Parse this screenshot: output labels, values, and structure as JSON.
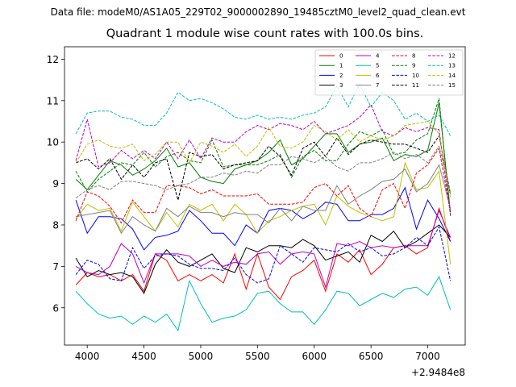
{
  "suptitle": "Data file: modeM0/AS1A05_229T02_9000002890_19485cztM0_level2_quad_clean.evt",
  "chart_data": {
    "type": "line",
    "title": "Quadrant 1 module wise count rates with 100.0s bins.",
    "xlabel": "",
    "ylabel": "",
    "x_offset_label": "+2.9484e8",
    "xlim": [
      3800,
      7330
    ],
    "ylim": [
      5.1,
      12.3
    ],
    "xticks": [
      4000,
      4500,
      5000,
      5500,
      6000,
      6500,
      7000
    ],
    "xtick_labels": [
      "4000",
      "4500",
      "5000",
      "5500",
      "6000",
      "6500",
      "7000"
    ],
    "yticks": [
      6,
      7,
      8,
      9,
      10,
      11,
      12
    ],
    "ytick_labels": [
      "6",
      "7",
      "8",
      "9",
      "10",
      "11",
      "12"
    ],
    "grid": false,
    "legend_position": "top-right",
    "x": [
      3900,
      4000,
      4100,
      4200,
      4300,
      4400,
      4500,
      4600,
      4700,
      4800,
      4900,
      5000,
      5100,
      5200,
      5300,
      5400,
      5500,
      5600,
      5700,
      5800,
      5900,
      6000,
      6100,
      6200,
      6300,
      6400,
      6500,
      6600,
      6700,
      6800,
      6900,
      7000,
      7100,
      7200
    ],
    "series": [
      {
        "name": "0",
        "color": "#ff0000",
        "dash": "solid",
        "values": [
          6.55,
          6.85,
          6.75,
          6.8,
          6.65,
          6.8,
          6.4,
          7.3,
          7.15,
          6.65,
          6.8,
          6.65,
          6.8,
          6.6,
          7.3,
          6.45,
          7.3,
          6.5,
          6.2,
          6.75,
          6.9,
          7.15,
          6.4,
          7.3,
          7.1,
          7.4,
          6.8,
          7.05,
          7.45,
          7.5,
          7.3,
          7.45,
          8.4,
          7.6
        ]
      },
      {
        "name": "1",
        "color": "#008000",
        "dash": "solid",
        "values": [
          9.1,
          8.85,
          9.2,
          9.55,
          9.45,
          9.2,
          9.35,
          9.55,
          9.85,
          9.4,
          9.5,
          9.15,
          9.05,
          9.0,
          9.35,
          9.45,
          9.55,
          9.75,
          10.05,
          9.45,
          9.6,
          9.9,
          10.2,
          10.2,
          9.75,
          9.95,
          10.0,
          10.1,
          9.55,
          9.7,
          9.65,
          9.8,
          10.95,
          8.3
        ]
      },
      {
        "name": "2",
        "color": "#0000ff",
        "dash": "solid",
        "values": [
          8.6,
          7.8,
          8.2,
          8.2,
          8.15,
          7.9,
          7.4,
          7.7,
          7.75,
          7.85,
          8.35,
          8.1,
          7.8,
          7.8,
          7.5,
          8.0,
          7.8,
          8.35,
          8.4,
          8.35,
          8.15,
          8.3,
          8.55,
          8.5,
          8.1,
          8.1,
          8.25,
          8.25,
          8.4,
          8.9,
          7.9,
          8.6,
          8.15,
          7.6
        ]
      },
      {
        "name": "3",
        "color": "#000000",
        "dash": "solid",
        "values": [
          7.2,
          6.75,
          6.9,
          6.8,
          6.85,
          6.75,
          6.35,
          7.05,
          7.4,
          7.1,
          7.0,
          7.15,
          7.3,
          6.95,
          6.85,
          7.45,
          7.35,
          7.5,
          7.5,
          7.45,
          7.65,
          7.5,
          7.15,
          7.25,
          7.35,
          7.1,
          7.75,
          7.6,
          7.85,
          7.45,
          7.6,
          7.8,
          8.0,
          7.7
        ]
      },
      {
        "name": "4",
        "color": "#bf00bf",
        "dash": "solid",
        "values": [
          7.0,
          6.85,
          6.8,
          7.0,
          7.55,
          7.3,
          6.6,
          7.3,
          7.3,
          7.3,
          7.25,
          7.0,
          7.15,
          7.0,
          7.1,
          7.05,
          7.3,
          7.35,
          7.05,
          7.3,
          7.35,
          7.3,
          6.5,
          7.55,
          7.5,
          7.6,
          7.45,
          7.5,
          7.45,
          7.5,
          7.5,
          7.5,
          8.35,
          7.7
        ]
      },
      {
        "name": "5",
        "color": "#00bfbf",
        "dash": "solid",
        "values": [
          6.4,
          6.1,
          5.85,
          5.75,
          5.8,
          5.6,
          5.8,
          5.65,
          5.85,
          5.45,
          6.65,
          6.1,
          5.65,
          5.75,
          5.8,
          5.95,
          6.35,
          6.4,
          6.1,
          5.9,
          5.9,
          5.6,
          5.95,
          6.4,
          6.35,
          6.05,
          6.2,
          6.35,
          6.25,
          6.45,
          6.5,
          6.3,
          6.75,
          5.95
        ]
      },
      {
        "name": "6",
        "color": "#bfbf00",
        "dash": "solid",
        "values": [
          8.15,
          8.5,
          8.35,
          8.4,
          7.85,
          8.55,
          8.2,
          7.85,
          8.3,
          7.95,
          8.5,
          8.35,
          8.5,
          8.1,
          8.5,
          8.25,
          7.8,
          8.1,
          8.2,
          8.35,
          8.45,
          8.5,
          8.0,
          8.7,
          8.45,
          8.3,
          8.2,
          8.1,
          8.2,
          9.5,
          8.85,
          8.9,
          9.3,
          7.05
        ]
      },
      {
        "name": "7",
        "color": "#808080",
        "dash": "solid",
        "values": [
          8.2,
          8.25,
          8.3,
          8.35,
          7.8,
          8.2,
          8.0,
          7.85,
          8.4,
          8.2,
          8.45,
          8.3,
          8.3,
          8.2,
          8.3,
          8.25,
          8.25,
          8.05,
          8.4,
          8.1,
          8.45,
          8.35,
          8.35,
          8.95,
          8.5,
          8.7,
          8.85,
          9.05,
          9.1,
          9.35,
          8.8,
          9.0,
          9.45,
          8.4
        ]
      },
      {
        "name": "8",
        "color": "#ff0000",
        "dash": "dashed",
        "values": [
          8.1,
          8.8,
          8.7,
          8.45,
          8.05,
          8.6,
          8.3,
          8.3,
          8.95,
          8.95,
          8.9,
          8.75,
          8.85,
          8.7,
          8.7,
          8.7,
          8.75,
          8.5,
          8.5,
          8.5,
          8.55,
          8.9,
          9.0,
          8.7,
          8.95,
          8.4,
          8.2,
          8.85,
          9.0,
          8.4,
          9.25,
          9.45,
          9.85,
          8.3
        ]
      },
      {
        "name": "9",
        "color": "#008000",
        "dash": "dashed",
        "values": [
          9.3,
          8.8,
          9.1,
          9.3,
          9.5,
          9.45,
          9.75,
          9.4,
          9.65,
          9.75,
          9.55,
          9.5,
          10.05,
          9.4,
          9.45,
          9.45,
          9.45,
          9.55,
          9.7,
          9.15,
          9.65,
          9.8,
          9.55,
          9.55,
          9.95,
          10.25,
          10.15,
          10.3,
          9.7,
          9.75,
          10.05,
          10.2,
          11.05,
          8.2
        ]
      },
      {
        "name": "10",
        "color": "#0000ff",
        "dash": "dashed",
        "values": [
          6.8,
          7.15,
          7.05,
          6.7,
          6.65,
          7.45,
          6.95,
          7.25,
          7.3,
          7.25,
          7.05,
          6.95,
          6.95,
          6.9,
          7.2,
          6.8,
          6.6,
          6.7,
          7.5,
          7.3,
          7.1,
          7.45,
          7.4,
          7.35,
          7.55,
          7.35,
          7.45,
          7.25,
          7.3,
          7.45,
          7.7,
          7.5,
          7.95,
          6.65
        ]
      },
      {
        "name": "11",
        "color": "#000000",
        "dash": "dashed",
        "values": [
          9.5,
          9.6,
          9.35,
          9.6,
          9.1,
          9.45,
          9.15,
          9.5,
          9.6,
          8.6,
          9.75,
          9.65,
          9.7,
          9.35,
          9.45,
          9.5,
          9.55,
          9.9,
          9.65,
          9.2,
          9.85,
          10.0,
          9.65,
          10.1,
          9.7,
          9.95,
          10.05,
          10.0,
          9.95,
          9.95,
          9.85,
          9.75,
          10.15,
          8.75
        ]
      },
      {
        "name": "12",
        "color": "#bf00bf",
        "dash": "dashed",
        "values": [
          9.55,
          10.55,
          9.4,
          9.5,
          9.8,
          9.6,
          9.8,
          9.6,
          10.0,
          9.6,
          10.05,
          9.6,
          10.1,
          10.0,
          10.0,
          10.25,
          10.4,
          10.3,
          10.45,
          10.4,
          10.3,
          10.5,
          10.2,
          10.3,
          10.4,
          10.6,
          10.9,
          10.25,
          10.15,
          10.35,
          10.25,
          10.35,
          10.3,
          8.25
        ]
      },
      {
        "name": "13",
        "color": "#00bfbf",
        "dash": "dashed",
        "values": [
          10.2,
          10.7,
          10.75,
          10.75,
          10.6,
          10.55,
          10.4,
          10.4,
          10.7,
          11.2,
          11.0,
          11.05,
          10.95,
          10.8,
          10.6,
          10.55,
          10.65,
          10.55,
          10.6,
          10.55,
          10.65,
          10.7,
          10.85,
          11.35,
          10.85,
          11.4,
          10.85,
          11.2,
          11.0,
          10.55,
          10.7,
          10.5,
          10.65,
          10.15
        ]
      },
      {
        "name": "14",
        "color": "#bfbf00",
        "dash": "dashed",
        "values": [
          9.5,
          9.95,
          10.05,
          9.9,
          9.85,
          9.95,
          9.55,
          9.7,
          10.0,
          10.0,
          9.5,
          10.0,
          9.9,
          9.75,
          9.95,
          9.65,
          9.9,
          10.35,
          9.9,
          9.85,
          10.0,
          10.4,
          10.25,
          10.05,
          10.3,
          10.0,
          10.15,
          10.05,
          10.15,
          10.4,
          10.45,
          10.5,
          10.2,
          8.65
        ]
      },
      {
        "name": "15",
        "color": "#808080",
        "dash": "dashed",
        "values": [
          8.65,
          8.85,
          8.95,
          8.85,
          9.05,
          9.05,
          9.0,
          8.95,
          8.85,
          8.95,
          9.0,
          9.15,
          9.15,
          9.25,
          9.2,
          9.3,
          9.25,
          9.45,
          9.45,
          9.65,
          9.6,
          9.5,
          9.65,
          9.4,
          9.3,
          9.5,
          9.5,
          9.6,
          9.75,
          9.6,
          9.7,
          9.5,
          9.9,
          8.75
        ]
      }
    ]
  }
}
